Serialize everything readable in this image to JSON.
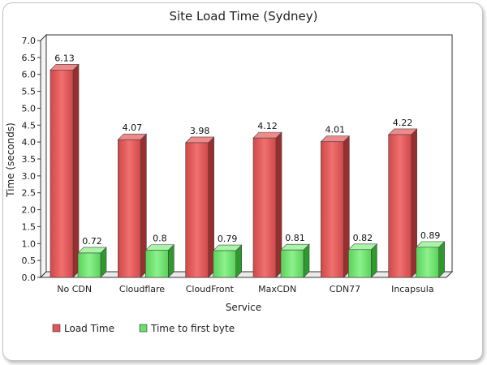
{
  "chart_data": {
    "type": "bar",
    "title": "Site Load Time (Sydney)",
    "xlabel": "Service",
    "ylabel": "Time (seconds)",
    "categories": [
      "No CDN",
      "Cloudflare",
      "CloudFront",
      "MaxCDN",
      "CDN77",
      "Incapsula"
    ],
    "series": [
      {
        "name": "Load Time",
        "values": [
          6.13,
          4.07,
          3.98,
          4.12,
          4.01,
          4.22
        ],
        "color": "#e05555"
      },
      {
        "name": "Time to first byte",
        "values": [
          0.72,
          0.8,
          0.79,
          0.81,
          0.82,
          0.89
        ],
        "color": "#66e066"
      }
    ],
    "ylim": [
      0,
      7
    ],
    "yticks": [
      "0.0",
      "0.5",
      "1.0",
      "1.5",
      "2.0",
      "2.5",
      "3.0",
      "3.5",
      "4.0",
      "4.5",
      "5.0",
      "5.5",
      "6.0",
      "6.5",
      "7.0"
    ],
    "grid": false,
    "legend_position": "bottom-left",
    "style": "3d"
  }
}
